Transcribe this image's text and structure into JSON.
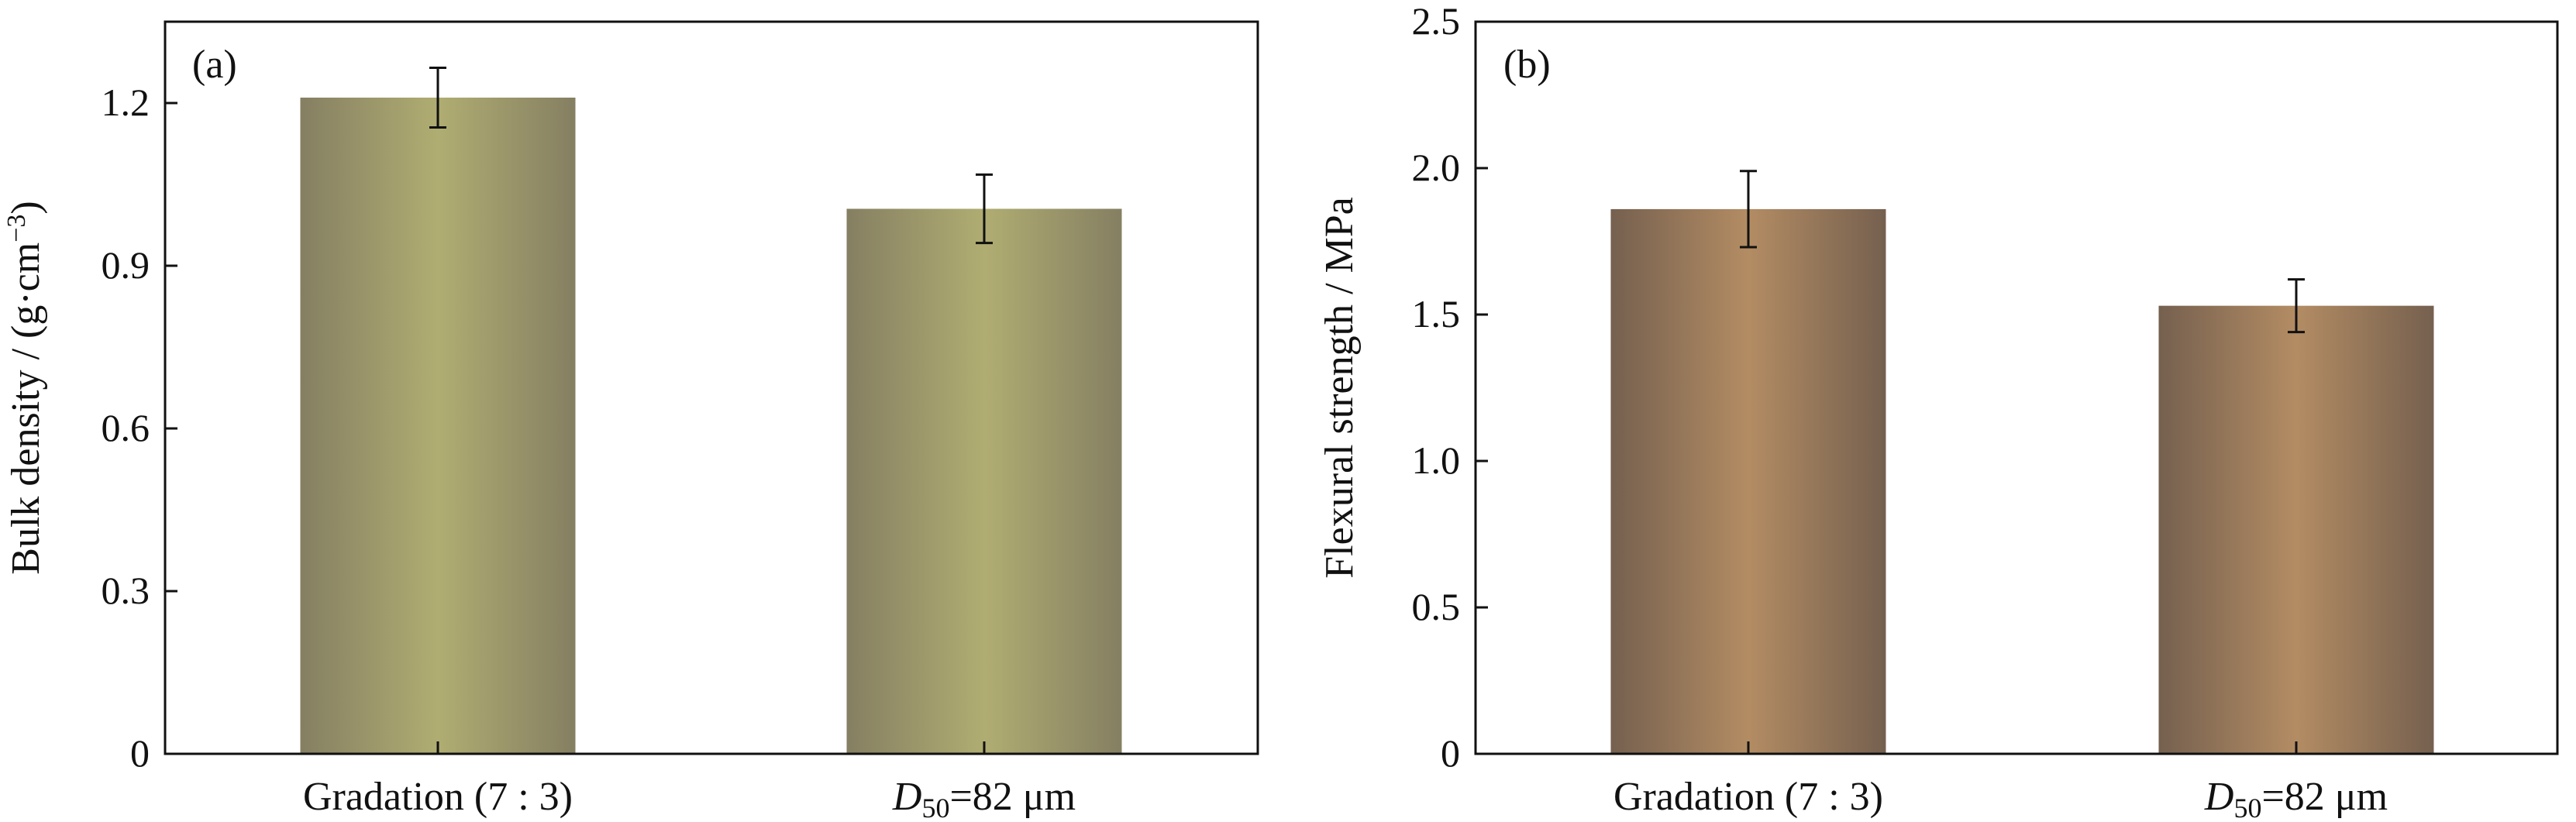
{
  "chart_data": [
    {
      "type": "bar",
      "panel_label": "(a)",
      "categories": [
        "Gradation (7 : 3)",
        "D50=82 μm"
      ],
      "category_parts": [
        {
          "main": "Gradation (7 : 3)",
          "italic": "",
          "sub": "",
          "rest": ""
        },
        {
          "main": "",
          "italic": "D",
          "sub": "50",
          "rest": "=82 μm"
        }
      ],
      "values": [
        1.21,
        1.005
      ],
      "errors": [
        0.055,
        0.063
      ],
      "ylabel": "Bulk density / (g·cm⁻³)",
      "ylabel_parts": {
        "main": "Bulk density / (g·cm",
        "sup": "−3",
        "tail": ")"
      },
      "ylim": [
        0,
        1.35
      ],
      "yticks": [
        0,
        0.3,
        0.6,
        0.9,
        1.2
      ],
      "ytick_labels": [
        "0",
        "0.3",
        "0.6",
        "0.9",
        "1.2"
      ],
      "bar_colors": {
        "edge": "#857f62",
        "center": "#b0ad72"
      }
    },
    {
      "type": "bar",
      "panel_label": "(b)",
      "categories": [
        "Gradation (7 : 3)",
        "D50=82 μm"
      ],
      "category_parts": [
        {
          "main": "Gradation (7 : 3)",
          "italic": "",
          "sub": "",
          "rest": ""
        },
        {
          "main": "",
          "italic": "D",
          "sub": "50",
          "rest": "=82 μm"
        }
      ],
      "values": [
        1.86,
        1.53
      ],
      "errors": [
        0.13,
        0.09
      ],
      "ylabel": "Flexural strength / MPa",
      "ylabel_parts": {
        "main": "Flexural strength / MPa",
        "sup": "",
        "tail": ""
      },
      "ylim": [
        0,
        2.5
      ],
      "yticks": [
        0,
        0.5,
        1.0,
        1.5,
        2.0,
        2.5
      ],
      "ytick_labels": [
        "0",
        "0.5",
        "1.0",
        "1.5",
        "2.0",
        "2.5"
      ],
      "bar_colors": {
        "edge": "#75604f",
        "center": "#b38c63"
      }
    }
  ]
}
